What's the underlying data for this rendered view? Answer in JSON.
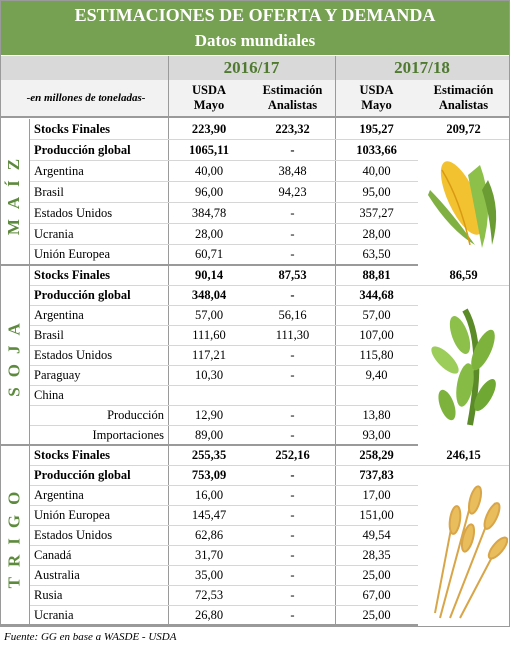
{
  "header": {
    "title": "ESTIMACIONES DE OFERTA Y DEMANDA",
    "subtitle": "Datos mundiales"
  },
  "columns": {
    "units": "-en millones de toneladas-",
    "years": [
      "2016/17",
      "2017/18"
    ],
    "headers": [
      [
        "USDA",
        "Mayo"
      ],
      [
        "Estimación",
        "Analistas"
      ],
      [
        "USDA",
        "Mayo"
      ],
      [
        "Estimación",
        "Analistas"
      ]
    ]
  },
  "sections": [
    {
      "name": "MAÍZ",
      "rows": [
        [
          "Stocks Finales",
          "223,90",
          "223,32",
          "195,27",
          "209,72"
        ],
        [
          "Producción global",
          "1065,11",
          "-",
          "1033,66"
        ],
        [
          "Argentina",
          "40,00",
          "38,48",
          "40,00"
        ],
        [
          "Brasil",
          "96,00",
          "94,23",
          "95,00"
        ],
        [
          "Estados Unidos",
          "384,78",
          "-",
          "357,27"
        ],
        [
          "Ucrania",
          "28,00",
          "-",
          "28,00"
        ],
        [
          "Unión Europea",
          "60,71",
          "-",
          "63,50"
        ]
      ]
    },
    {
      "name": "SOJA",
      "rows": [
        [
          "Stocks Finales",
          "90,14",
          "87,53",
          "88,81",
          "86,59"
        ],
        [
          "Producción global",
          "348,04",
          "-",
          "344,68"
        ],
        [
          "Argentina",
          "57,00",
          "56,16",
          "57,00"
        ],
        [
          "Brasil",
          "111,60",
          "111,30",
          "107,00"
        ],
        [
          "Estados Unidos",
          "117,21",
          "-",
          "115,80"
        ],
        [
          "Paraguay",
          "10,30",
          "-",
          "9,40"
        ],
        [
          "China"
        ],
        [
          "Producción",
          "12,90",
          "-",
          "13,80"
        ],
        [
          "Importaciones",
          "89,00",
          "-",
          "93,00"
        ]
      ]
    },
    {
      "name": "TRIGO",
      "rows": [
        [
          "Stocks Finales",
          "255,35",
          "252,16",
          "258,29",
          "246,15"
        ],
        [
          "Producción global",
          "753,09",
          "-",
          "737,83"
        ],
        [
          "Argentina",
          "16,00",
          "-",
          "17,00"
        ],
        [
          "Unión Europea",
          "145,47",
          "-",
          "151,00"
        ],
        [
          "Estados Unidos",
          "62,86",
          "-",
          "49,54"
        ],
        [
          "Canadá",
          "31,70",
          "-",
          "28,35"
        ],
        [
          "Australia",
          "35,00",
          "-",
          "25,00"
        ],
        [
          "Rusia",
          "72,53",
          "-",
          "67,00"
        ],
        [
          "Ucrania",
          "26,80",
          "-",
          "25,00"
        ]
      ]
    }
  ],
  "footer": "Fuente: GG en base a WASDE - USDA"
}
